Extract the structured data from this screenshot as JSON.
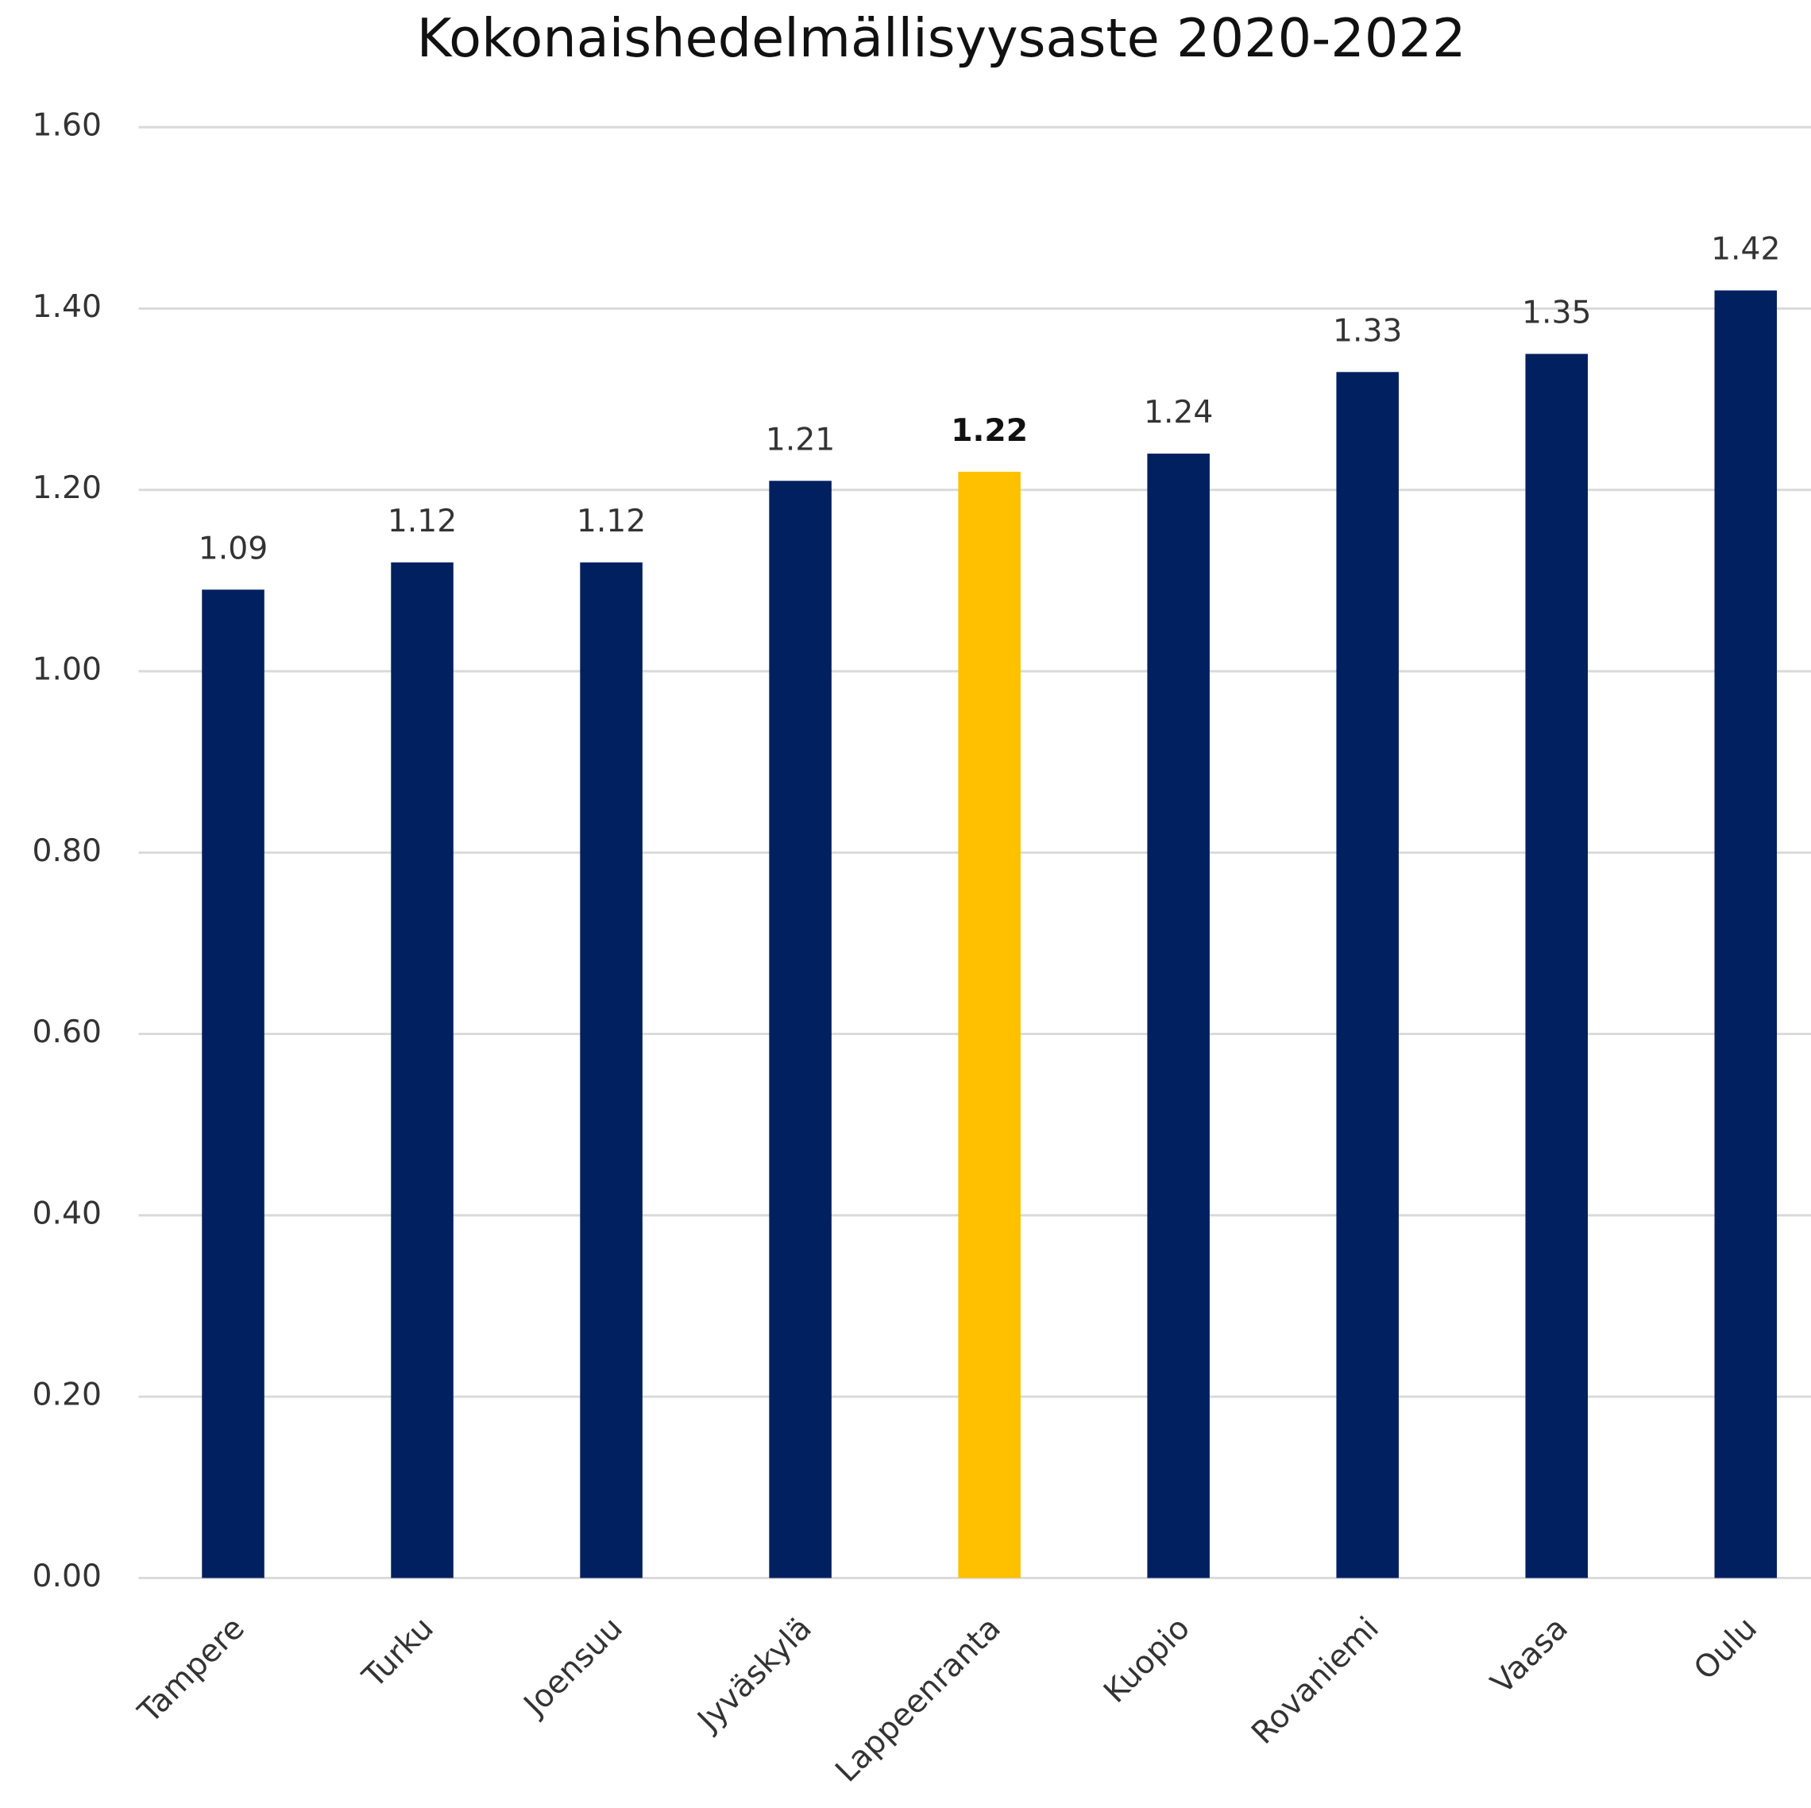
{
  "chart_data": {
    "type": "bar",
    "title": "Kokonaishedelmällisyysaste 2020-2022",
    "categories": [
      "Tampere",
      "Turku",
      "Joensuu",
      "Jyväskylä",
      "Lappeenranta",
      "Kuopio",
      "Rovaniemi",
      "Vaasa",
      "Oulu"
    ],
    "values": [
      1.09,
      1.12,
      1.12,
      1.21,
      1.22,
      1.24,
      1.33,
      1.35,
      1.42
    ],
    "color": "#002060",
    "colors": [
      "#002060",
      "#002060",
      "#002060",
      "#002060",
      "#FFC000",
      "#002060",
      "#002060",
      "#002060",
      "#002060"
    ],
    "ylim": [
      0,
      1.6
    ],
    "yticks": [
      {
        "value": 0,
        "label": "0.00"
      },
      {
        "value": 0.2,
        "label": "0.20"
      },
      {
        "value": 0.4,
        "label": "0.40"
      },
      {
        "value": 0.6,
        "label": "0.60"
      },
      {
        "value": 0.8,
        "label": "0.80"
      },
      {
        "value": 1,
        "label": "1.00"
      },
      {
        "value": 1.2,
        "label": "1.20"
      },
      {
        "value": 1.4,
        "label": "1.40"
      },
      {
        "value": 1.6,
        "label": "1.60"
      }
    ],
    "grid": true
  }
}
